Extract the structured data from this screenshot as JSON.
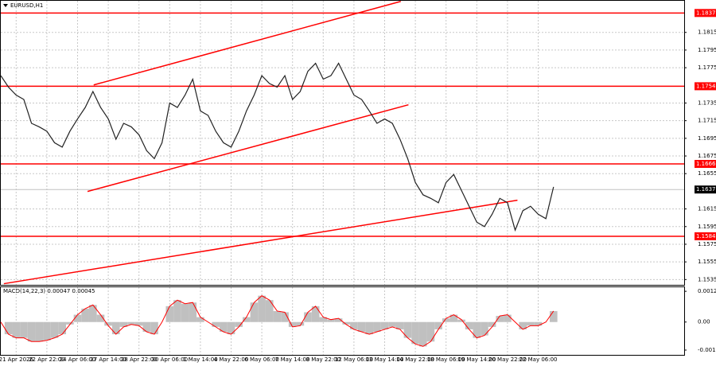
{
  "chart_data": [
    {
      "type": "line",
      "title": "EURUSD,H1",
      "color": "#222222",
      "grid": true,
      "categories": [
        null,
        null,
        "21 Apr 2026",
        null,
        null,
        null,
        "22 Apr 22:00",
        null,
        null,
        null,
        "24 Apr 06:00",
        null,
        null,
        null,
        "27 Apr 14:00",
        null,
        null,
        null,
        "28 Apr 22:00",
        null,
        null,
        null,
        "30 Apr 06:00",
        null,
        null,
        null,
        "1 May 14:00",
        null,
        null,
        null,
        "4 May 22:00",
        null,
        null,
        null,
        "6 May 06:00",
        null,
        null,
        null,
        "7 May 14:00",
        null,
        null,
        null,
        "8 May 22:00",
        null,
        null,
        null,
        "12 May 06:00",
        null,
        null,
        null,
        "13 May 14:00",
        null,
        null,
        null,
        "14 May 22:00",
        null,
        null,
        null,
        "18 May 06:00",
        null,
        null,
        null,
        "19 May 14:00",
        null,
        null,
        null,
        "20 May 22:00",
        null,
        null,
        null,
        "22 May 06:00",
        null,
        null
      ],
      "values": [
        1.1766,
        1.1753,
        1.1744,
        1.1739,
        1.1712,
        1.1708,
        1.1703,
        1.169,
        1.1685,
        1.1703,
        1.1717,
        1.173,
        1.1748,
        1.173,
        1.1717,
        1.1694,
        1.1712,
        1.1708,
        1.1699,
        1.1681,
        1.1672,
        1.169,
        1.1735,
        1.173,
        1.1744,
        1.1762,
        1.1726,
        1.1721,
        1.1703,
        1.169,
        1.1685,
        1.1703,
        1.1726,
        1.1744,
        1.1766,
        1.1757,
        1.1753,
        1.1766,
        1.1739,
        1.1748,
        1.1771,
        1.178,
        1.1762,
        1.1766,
        1.178,
        1.1762,
        1.1744,
        1.1739,
        1.1726,
        1.1712,
        1.1717,
        1.1712,
        1.1694,
        1.1672,
        1.1645,
        1.1631,
        1.1627,
        1.1622,
        1.1645,
        1.1654,
        1.1636,
        1.1618,
        1.16,
        1.1595,
        1.1609,
        1.1627,
        1.1622,
        1.1591,
        1.1613,
        1.1618,
        1.1609,
        1.1604,
        1.164
      ],
      "ylim": [
        1.1529,
        1.1849
      ],
      "yticks": [
        1.1535,
        1.1555,
        1.1575,
        1.1595,
        1.1615,
        1.1655,
        1.1675,
        1.1695,
        1.1715,
        1.1735,
        1.1775,
        1.1795,
        1.1815
      ],
      "levels": [
        1.1837,
        1.1754,
        1.1666,
        1.1584
      ],
      "level_color": "#ff0000",
      "current_price": 1.1637,
      "trend_lines": [
        [
          12.1,
          1.17555,
          52.1,
          1.18501
        ],
        [
          11.3,
          1.16348,
          53.1,
          1.1733
        ],
        [
          0.4,
          1.15303,
          67.3,
          1.16249
        ]
      ]
    },
    {
      "type": "bar",
      "title": "MACD(14,22,3) 0.00047 0.00045",
      "color": "#c0c0c0",
      "line_color": "#ff0000",
      "values": [
        0,
        -0.0005,
        -0.00065,
        -0.00065,
        -0.0008,
        -0.0008,
        -0.00075,
        -0.00065,
        -0.0005,
        -0.0001,
        0.0003,
        0.00055,
        0.0007,
        0.0003,
        -0.00015,
        -0.0005,
        -0.0002,
        -0.0001,
        -0.00015,
        -0.0004,
        -0.0005,
        0,
        0.00065,
        0.0009,
        0.00075,
        0.0008,
        0.0002,
        0,
        -0.0002,
        -0.0004,
        -0.0005,
        -0.0002,
        0.0002,
        0.0008,
        0.00108,
        0.0009,
        0.00045,
        0.0004,
        -0.0002,
        -0.00015,
        0.0004,
        0.00065,
        0.0002,
        0.0001,
        0.00015,
        -0.0001,
        -0.0003,
        -0.0004,
        -0.0005,
        -0.0004,
        -0.0003,
        -0.0002,
        -0.0003,
        -0.00065,
        -0.0009,
        -0.001,
        -0.0008,
        -0.0003,
        0.00015,
        0.0003,
        0.0001,
        -0.0003,
        -0.00065,
        -0.00055,
        -0.0002,
        0.00025,
        0.0003,
        0,
        -0.0003,
        -0.00015,
        -0.00015,
        0,
        0.00045
      ],
      "ylim": [
        -0.00164,
        0.00146
      ],
      "yticks": [
        -0.00115,
        {
          "value": 0,
          "label": "0.00"
        },
        0.00126
      ]
    }
  ]
}
